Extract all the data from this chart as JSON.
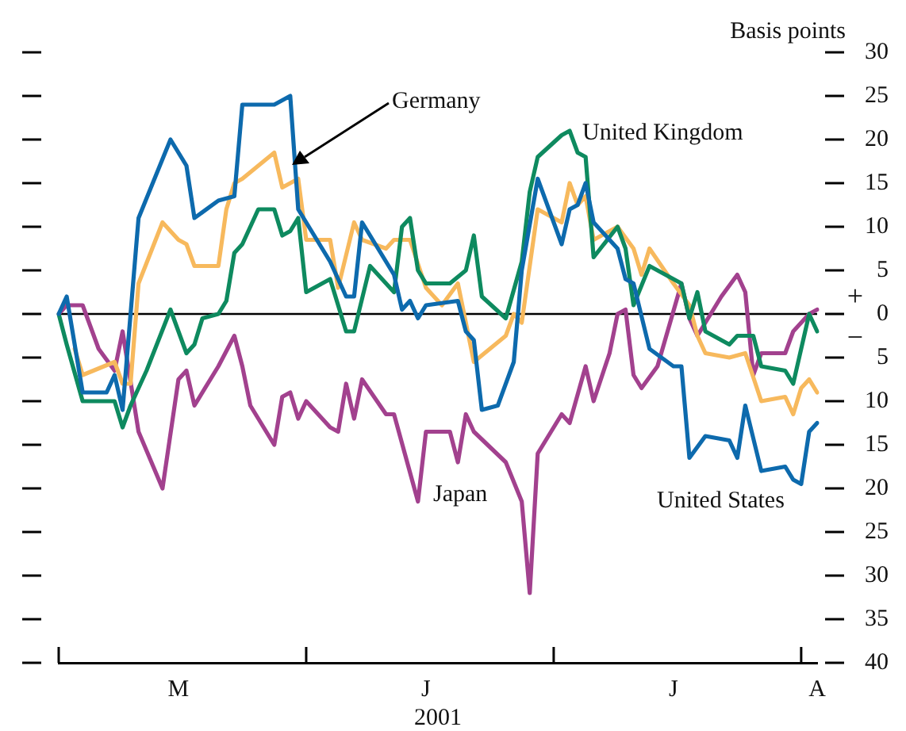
{
  "chart_data": {
    "type": "line",
    "xlabel": "2001",
    "ylabel": "Basis points",
    "annotations": [
      "+",
      "−"
    ],
    "categories": [
      null,
      null,
      null,
      null,
      null,
      null,
      null,
      null,
      null,
      null,
      null,
      null,
      null,
      null,
      null,
      "M",
      null,
      null,
      null,
      null,
      null,
      null,
      null,
      null,
      null,
      null,
      null,
      null,
      null,
      null,
      null,
      null,
      null,
      null,
      null,
      null,
      null,
      null,
      null,
      null,
      null,
      null,
      null,
      null,
      null,
      null,
      "J",
      null,
      null,
      null,
      null,
      null,
      null,
      null,
      null,
      null,
      null,
      null,
      null,
      null,
      null,
      null,
      null,
      null,
      null,
      null,
      null,
      null,
      null,
      null,
      null,
      null,
      null,
      null,
      null,
      null,
      null,
      "J",
      null,
      null,
      null,
      null,
      null,
      null,
      null,
      null,
      null,
      null,
      null,
      null,
      null,
      null,
      null,
      null,
      null,
      "A"
    ],
    "ylim": [
      -40,
      30
    ],
    "yticks": [
      {
        "value": -40,
        "label": "40"
      },
      {
        "value": -35,
        "label": "35"
      },
      {
        "value": -30,
        "label": "30"
      },
      {
        "value": -25,
        "label": "25"
      },
      {
        "value": -20,
        "label": "20"
      },
      {
        "value": -15,
        "label": "15"
      },
      {
        "value": -10,
        "label": "10"
      },
      {
        "value": -5,
        "label": "5"
      },
      0,
      5,
      10,
      15,
      20,
      25,
      30
    ],
    "ref_lines": [
      {
        "axis": "y",
        "value": 0,
        "color": "#000000"
      }
    ],
    "series": [
      {
        "name": "United States",
        "color": "#0d6aad",
        "values": [
          0,
          2,
          null,
          -9,
          null,
          null,
          -9,
          -7,
          -11,
          null,
          11,
          null,
          null,
          null,
          20,
          null,
          17,
          11,
          null,
          null,
          13,
          null,
          13.5,
          24,
          null,
          null,
          null,
          24,
          null,
          25,
          12,
          null,
          9,
          null,
          6,
          null,
          2,
          2,
          10.5,
          null,
          null,
          null,
          4.5,
          0.5,
          1.5,
          -0.5,
          1,
          null,
          null,
          null,
          1.5,
          -2,
          -3,
          -11,
          null,
          -10.5,
          null,
          -5.5,
          5,
          null,
          15.5,
          null,
          null,
          8,
          12,
          12.5,
          15,
          10.5,
          null,
          null,
          7.5,
          4,
          3.5,
          null,
          -4,
          null,
          null,
          -6,
          -6,
          -16.5,
          null,
          -14,
          null,
          null,
          -14.5,
          -16.5,
          -10.5,
          null,
          -18,
          null,
          null,
          -17.5,
          -19,
          -19.5,
          -13.5,
          -12.5
        ]
      },
      {
        "name": "United Kingdom",
        "color": "#0e8a5f",
        "values": [
          0,
          -3.5,
          null,
          -10,
          null,
          null,
          null,
          -10,
          -13,
          -10.5,
          null,
          -6.5,
          null,
          null,
          0.5,
          null,
          -4.5,
          -3.5,
          -0.5,
          null,
          0,
          1.5,
          7,
          8,
          null,
          12,
          null,
          12,
          9,
          9.5,
          11,
          2.5,
          null,
          null,
          4,
          null,
          -2,
          -2,
          null,
          5.5,
          null,
          null,
          2.5,
          10,
          11,
          5,
          3.5,
          null,
          null,
          3.5,
          null,
          5,
          9,
          2,
          null,
          null,
          -0.5,
          null,
          6,
          14,
          18,
          null,
          null,
          20.5,
          21,
          18.5,
          18,
          6.5,
          null,
          null,
          10,
          7.5,
          1,
          null,
          5.5,
          null,
          null,
          null,
          3.5,
          -0.5,
          2.5,
          -2,
          null,
          null,
          -3.5,
          -2.5,
          null,
          -2.5,
          -6,
          null,
          null,
          -6.5,
          -8,
          -4,
          0,
          -2
        ]
      },
      {
        "name": "Germany",
        "color": "#f7b95d",
        "values": [
          null,
          null,
          -4,
          -7,
          null,
          null,
          null,
          -5.5,
          -8,
          -8,
          3.5,
          null,
          null,
          10.5,
          null,
          8.5,
          8,
          5.5,
          null,
          null,
          5.5,
          12,
          15,
          15.5,
          null,
          null,
          null,
          18.5,
          14.5,
          null,
          15.5,
          8.5,
          null,
          null,
          8.5,
          3,
          null,
          10.5,
          8.5,
          null,
          null,
          7.5,
          8.5,
          null,
          8.5,
          null,
          3,
          null,
          1,
          null,
          3.5,
          null,
          -5.5,
          null,
          null,
          null,
          -2.5,
          0,
          -1,
          null,
          12,
          null,
          null,
          10.5,
          15,
          12.5,
          13.5,
          8.5,
          null,
          null,
          10,
          null,
          7.5,
          4.5,
          7.5,
          null,
          null,
          3.5,
          null,
          1,
          -2.5,
          -4.5,
          null,
          null,
          -5,
          null,
          -4.5,
          null,
          -10,
          null,
          null,
          -9.5,
          -11.5,
          -8.5,
          -7.5,
          -9
        ]
      },
      {
        "name": "Japan",
        "color": "#a2418e",
        "values": [
          0,
          1,
          null,
          1,
          null,
          -4,
          null,
          -6.5,
          -2,
          null,
          -13.5,
          null,
          null,
          -20,
          null,
          -7.5,
          -6.5,
          -10.5,
          null,
          null,
          -6,
          null,
          -2.5,
          -6,
          -10.5,
          null,
          null,
          -15,
          -9.5,
          -9,
          -12,
          -10,
          null,
          null,
          -13,
          -13.5,
          -8,
          -12,
          -7.5,
          null,
          null,
          -11.5,
          -11.5,
          null,
          null,
          -21.5,
          -13.5,
          null,
          null,
          -13.5,
          -17,
          -11.5,
          -13.5,
          null,
          null,
          null,
          -17,
          null,
          -21.5,
          -32,
          -16,
          null,
          null,
          -11.5,
          -12.5,
          null,
          -6,
          -10,
          null,
          -4.5,
          0,
          0.5,
          -7,
          -8.5,
          null,
          -6,
          null,
          null,
          3.5,
          -0.5,
          -2.5,
          null,
          null,
          2,
          null,
          4.5,
          2.5,
          -7,
          -4.5,
          null,
          null,
          -4.5,
          -2,
          null,
          0,
          0.5
        ]
      }
    ]
  }
}
